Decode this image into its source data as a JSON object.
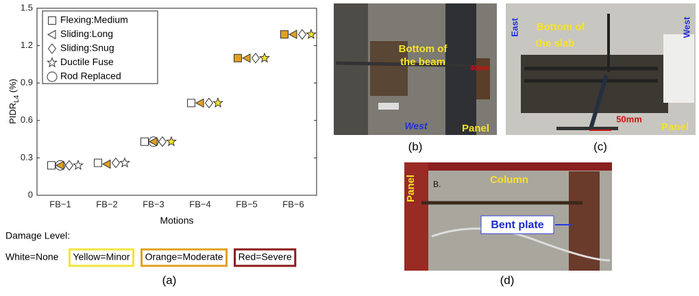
{
  "chart_data": {
    "type": "scatter",
    "ylabel": "PIDR",
    "ylabel_sub": "L4",
    "ylabel_suffix": " (%)",
    "xlabel": "Motions",
    "categories": [
      "FB−1",
      "FB−2",
      "FB−3",
      "FB−4",
      "FB−5",
      "FB−6"
    ],
    "ylim": [
      0,
      1.5
    ],
    "yticks": [
      0,
      0.3,
      0.6,
      0.9,
      1.2,
      1.5
    ],
    "series": [
      {
        "name": "Flexing:Medium",
        "marker": "square",
        "values": [
          0.24,
          0.26,
          0.43,
          0.74,
          1.1,
          1.29
        ],
        "colors": [
          "#ffffff",
          "#ffffff",
          "#ffffff",
          "#ffffff",
          "#e0a020",
          "#e0a020"
        ]
      },
      {
        "name": "Sliding:Long",
        "marker": "triangle-left",
        "values": [
          0.24,
          0.25,
          0.43,
          0.74,
          1.1,
          1.29
        ],
        "colors": [
          "#e0a020",
          "#e0a020",
          "#e0a020",
          "#e0a020",
          "#e0a020",
          "#e0a020"
        ]
      },
      {
        "name": "Sliding:Snug",
        "marker": "diamond",
        "values": [
          0.24,
          0.26,
          0.43,
          0.74,
          1.1,
          1.29
        ],
        "colors": [
          "#ffffff",
          "#ffffff",
          "#ffffff",
          "#ffffff",
          "#ffffff",
          "#ffffff"
        ]
      },
      {
        "name": "Ductile Fuse",
        "marker": "star",
        "values": [
          0.24,
          0.26,
          0.43,
          0.74,
          1.1,
          1.29
        ],
        "colors": [
          "#ffffff",
          "#ffffff",
          "#f5e32a",
          "#f5e32a",
          "#f5e32a",
          "#f5e32a"
        ]
      },
      {
        "name": "Rod Replaced",
        "marker": "circle",
        "values": [
          0.24,
          null,
          0.43,
          null,
          null,
          null
        ],
        "colors": [
          "none",
          "none",
          "none",
          "none",
          "none",
          "none"
        ]
      }
    ],
    "damage_title": "Damage Level:",
    "damage_levels": [
      {
        "label": "White=None",
        "color": "none"
      },
      {
        "label": "Yellow=Minor",
        "color": "#f0e63c"
      },
      {
        "label": "Orange=Moderate",
        "color": "#e0a020"
      },
      {
        "label": "Red=Severe",
        "color": "#8b1a1a"
      }
    ],
    "caption": "(a)"
  },
  "photo_b": {
    "caption": "(b)",
    "label_1": "Bottom of",
    "label_2": "the beam",
    "dimension": "40mm",
    "west": "West",
    "panel": "Panel"
  },
  "photo_c": {
    "caption": "(c)",
    "east": "East",
    "label_1": "Bottom of",
    "label_2": "the slab",
    "west": "West",
    "dimension": "50mm",
    "panel": "Panel"
  },
  "photo_d": {
    "caption": "(d)",
    "mark": "B.",
    "column": "Column",
    "panel": "Panel",
    "bent_plate": "Bent plate"
  }
}
